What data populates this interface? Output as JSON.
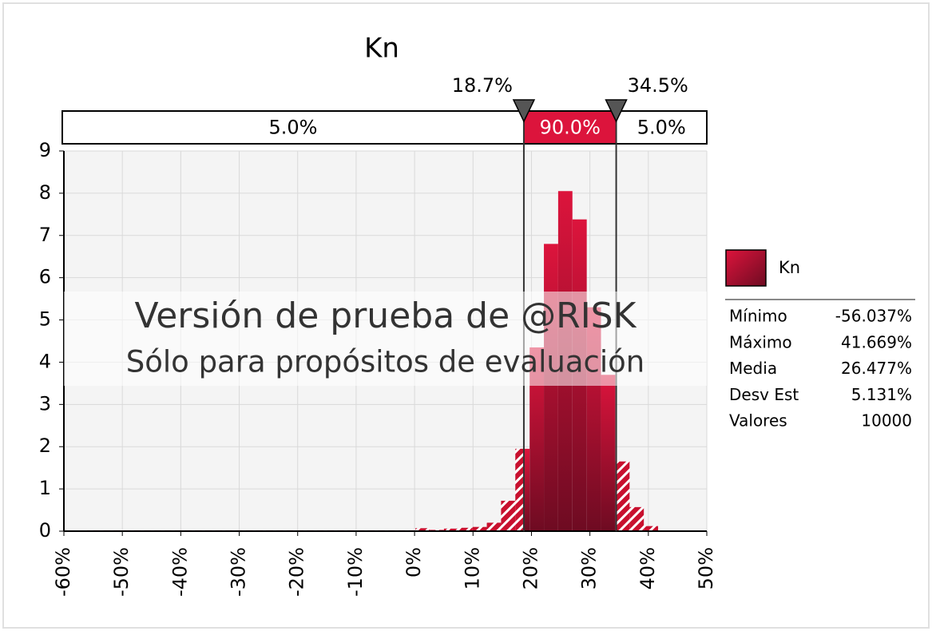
{
  "chart_data": {
    "type": "histogram",
    "title": "Kn",
    "bins": [
      -56.04,
      -53.59,
      -51.15,
      -48.71,
      -46.27,
      -43.82,
      -41.38,
      -38.94,
      -36.5,
      -34.05,
      -31.61,
      -29.17,
      -26.72,
      -24.28,
      -21.84,
      -19.4,
      -16.95,
      -14.51,
      -12.07,
      -9.63,
      -7.18,
      -4.74,
      -2.3,
      0.15,
      2.59,
      5.03,
      7.47,
      9.92,
      12.36,
      14.8,
      17.24,
      19.69,
      22.13,
      24.57,
      27.01,
      29.46,
      31.9,
      34.34,
      36.79,
      39.23,
      41.67
    ],
    "series": [
      {
        "name": "Kn",
        "color": "#c8102e",
        "values": [
          0.02,
          0.02,
          0.02,
          0.02,
          0.02,
          0.02,
          0.02,
          0.02,
          0.02,
          0.02,
          0.02,
          0.02,
          0.02,
          0.02,
          0.02,
          0.02,
          0.02,
          0.02,
          0.02,
          0.02,
          0.02,
          0.02,
          0.02,
          0.07,
          0.03,
          0.06,
          0.08,
          0.1,
          0.2,
          0.72,
          1.95,
          4.35,
          6.8,
          8.05,
          7.38,
          5.3,
          3.7,
          1.65,
          0.57,
          0.12
        ]
      }
    ],
    "xlim": [
      -60,
      50
    ],
    "xticks": [
      {
        "value": -60,
        "label": "-60%"
      },
      {
        "value": -50,
        "label": "-50%"
      },
      {
        "value": -40,
        "label": "-40%"
      },
      {
        "value": -30,
        "label": "-30%"
      },
      {
        "value": -20,
        "label": "-20%"
      },
      {
        "value": -10,
        "label": "-10%"
      },
      {
        "value": 0,
        "label": "0%"
      },
      {
        "value": 10,
        "label": "10%"
      },
      {
        "value": 20,
        "label": "20%"
      },
      {
        "value": 30,
        "label": "30%"
      },
      {
        "value": 40,
        "label": "40%"
      },
      {
        "value": 50,
        "label": "50%"
      }
    ],
    "ylim": [
      0,
      9
    ],
    "yticks": [
      0,
      1,
      2,
      3,
      4,
      5,
      6,
      7,
      8,
      9
    ],
    "grid": true,
    "delimiters": [
      {
        "value": 18.7,
        "label": "18.7%"
      },
      {
        "value": 34.5,
        "label": "34.5%"
      }
    ],
    "band_labels": [
      "5.0%",
      "90.0%",
      "5.0%"
    ],
    "watermark": [
      "Versión de prueba de @RISK",
      "Sólo para propósitos de evaluación"
    ],
    "stats": [
      {
        "label": "Mínimo",
        "value": "-56.037%"
      },
      {
        "label": "Máximo",
        "value": "41.669%"
      },
      {
        "label": "Media",
        "value": "26.477%"
      },
      {
        "label": "Desv Est",
        "value": "5.131%"
      },
      {
        "label": "Valores",
        "value": "10000"
      }
    ]
  }
}
